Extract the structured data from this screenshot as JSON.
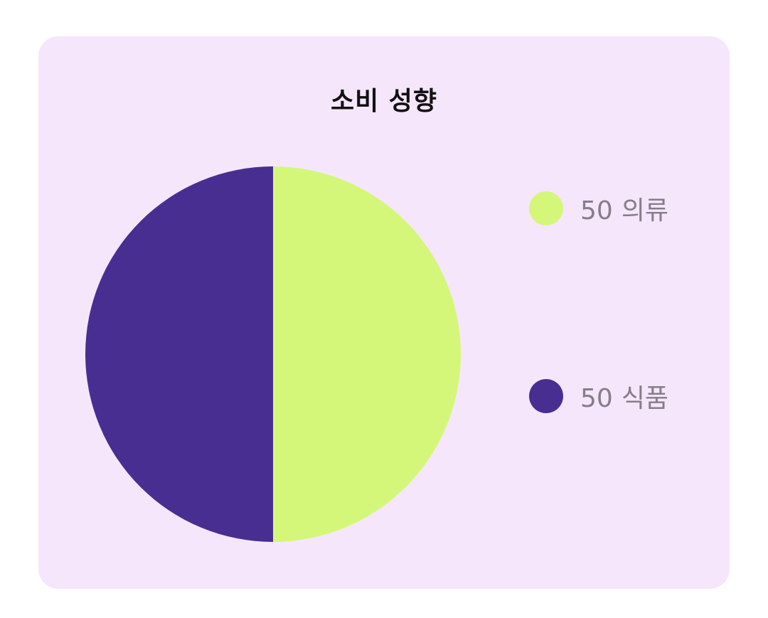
{
  "chart_data": {
    "type": "pie",
    "title": "소비 성향",
    "slices": [
      {
        "label": "의류",
        "value": 50,
        "display_value": "50",
        "color": "#d4f77a"
      },
      {
        "label": "식품",
        "value": 50,
        "display_value": "50",
        "color": "#492e91"
      }
    ],
    "legend_position": "right"
  },
  "colors": {
    "card_background": "#f6e6fc",
    "legend_text": "#857e88",
    "title_text": "#111111"
  }
}
